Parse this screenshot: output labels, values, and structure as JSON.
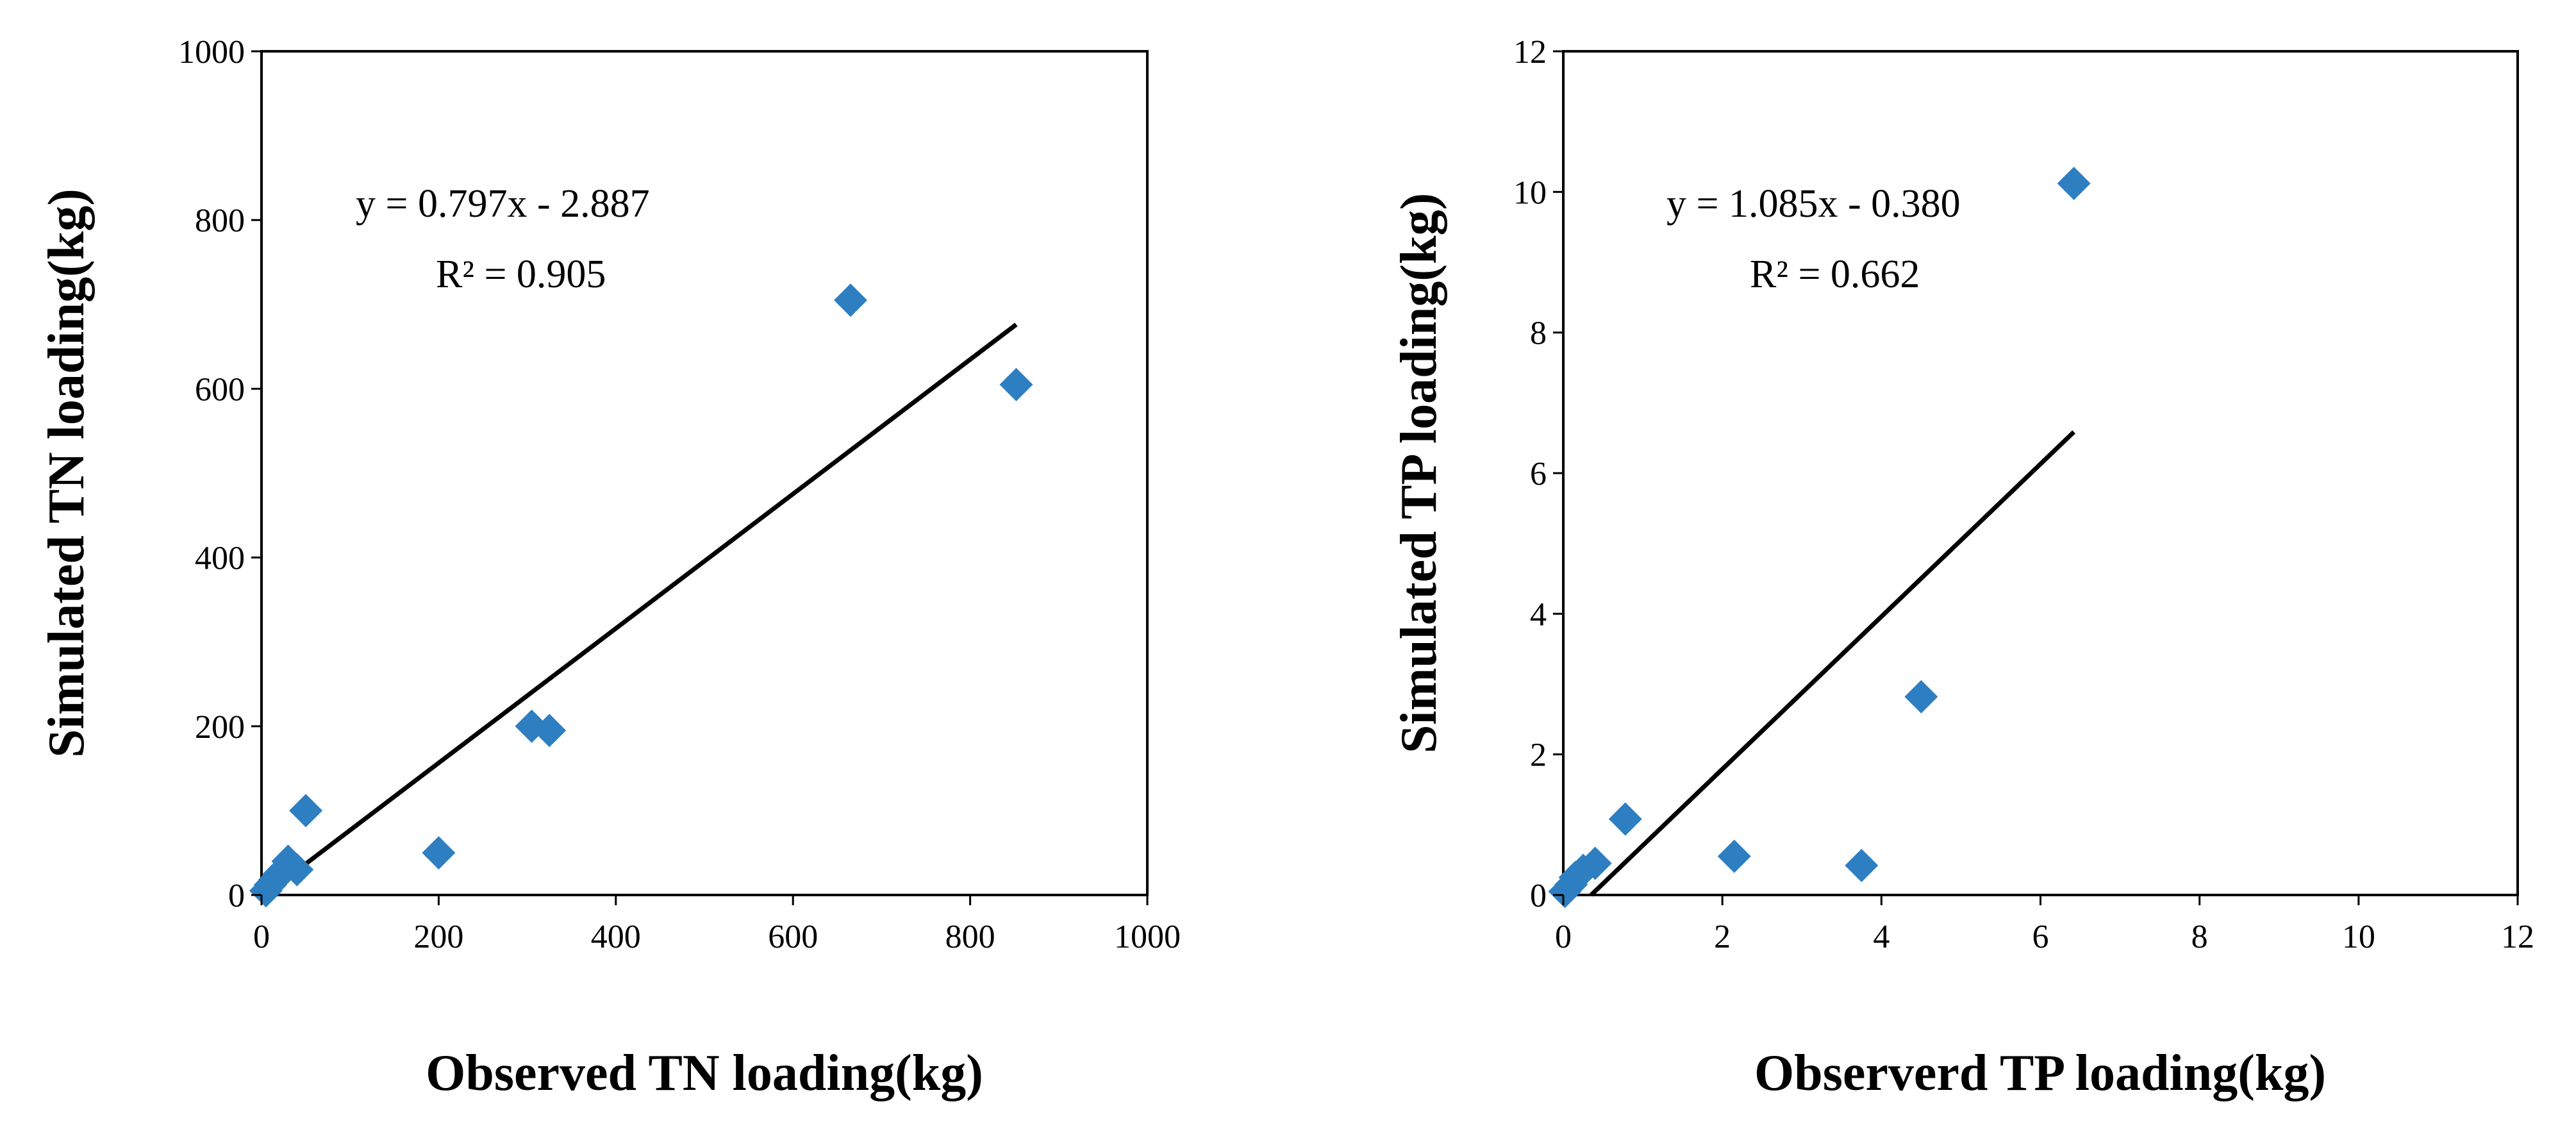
{
  "colors": {
    "marker": "#2e7fc1",
    "axis": "#000000",
    "background": "#ffffff"
  },
  "chart_data": [
    {
      "type": "scatter",
      "xlabel": "Observed TN loading(kg)",
      "ylabel": "Simulated TN loading(kg)",
      "xlim": [
        0,
        1000
      ],
      "ylim": [
        0,
        1000
      ],
      "xticks": [
        0,
        200,
        400,
        600,
        800,
        1000
      ],
      "yticks": [
        0,
        200,
        400,
        600,
        800,
        1000
      ],
      "xtick_labels": [
        "0",
        "200",
        "400",
        "600",
        "800",
        "1000"
      ],
      "ytick_labels": [
        "0",
        "200",
        "400",
        "600",
        "800",
        "1000"
      ],
      "marker": "diamond",
      "points": [
        {
          "x": 5,
          "y": 5
        },
        {
          "x": 10,
          "y": 12
        },
        {
          "x": 15,
          "y": 18
        },
        {
          "x": 20,
          "y": 25
        },
        {
          "x": 25,
          "y": 30
        },
        {
          "x": 30,
          "y": 40
        },
        {
          "x": 40,
          "y": 30
        },
        {
          "x": 50,
          "y": 100
        },
        {
          "x": 200,
          "y": 50
        },
        {
          "x": 305,
          "y": 200
        },
        {
          "x": 325,
          "y": 195
        },
        {
          "x": 665,
          "y": 705
        },
        {
          "x": 852,
          "y": 605
        }
      ],
      "trendline": {
        "slope": 0.797,
        "intercept": -2.887,
        "x_range": [
          0,
          852
        ]
      },
      "equation": "y = 0.797x - 2.887",
      "r_squared": "R² = 0.905"
    },
    {
      "type": "scatter",
      "xlabel": "Observerd TP loading(kg)",
      "ylabel": "Simulated TP loading(kg)",
      "xlim": [
        0,
        12
      ],
      "ylim": [
        0,
        12
      ],
      "xticks": [
        0,
        2,
        4,
        6,
        8,
        10,
        12
      ],
      "yticks": [
        0,
        2,
        4,
        6,
        8,
        10,
        12
      ],
      "xtick_labels": [
        "0",
        "2",
        "4",
        "6",
        "8",
        "10",
        "12"
      ],
      "ytick_labels": [
        "0",
        "2",
        "4",
        "6",
        "8",
        "10",
        "12"
      ],
      "marker": "diamond",
      "points": [
        {
          "x": 0.02,
          "y": 0.05
        },
        {
          "x": 0.1,
          "y": 0.15
        },
        {
          "x": 0.15,
          "y": 0.25
        },
        {
          "x": 0.25,
          "y": 0.35
        },
        {
          "x": 0.4,
          "y": 0.45
        },
        {
          "x": 0.78,
          "y": 1.08
        },
        {
          "x": 2.15,
          "y": 0.55
        },
        {
          "x": 3.75,
          "y": 0.42
        },
        {
          "x": 4.5,
          "y": 2.82
        },
        {
          "x": 6.42,
          "y": 10.12
        }
      ],
      "trendline": {
        "slope": 1.085,
        "intercept": -0.38,
        "x_range": [
          0.35,
          6.42
        ]
      },
      "equation": "y = 1.085x - 0.380",
      "r_squared": "R² = 0.662"
    }
  ]
}
